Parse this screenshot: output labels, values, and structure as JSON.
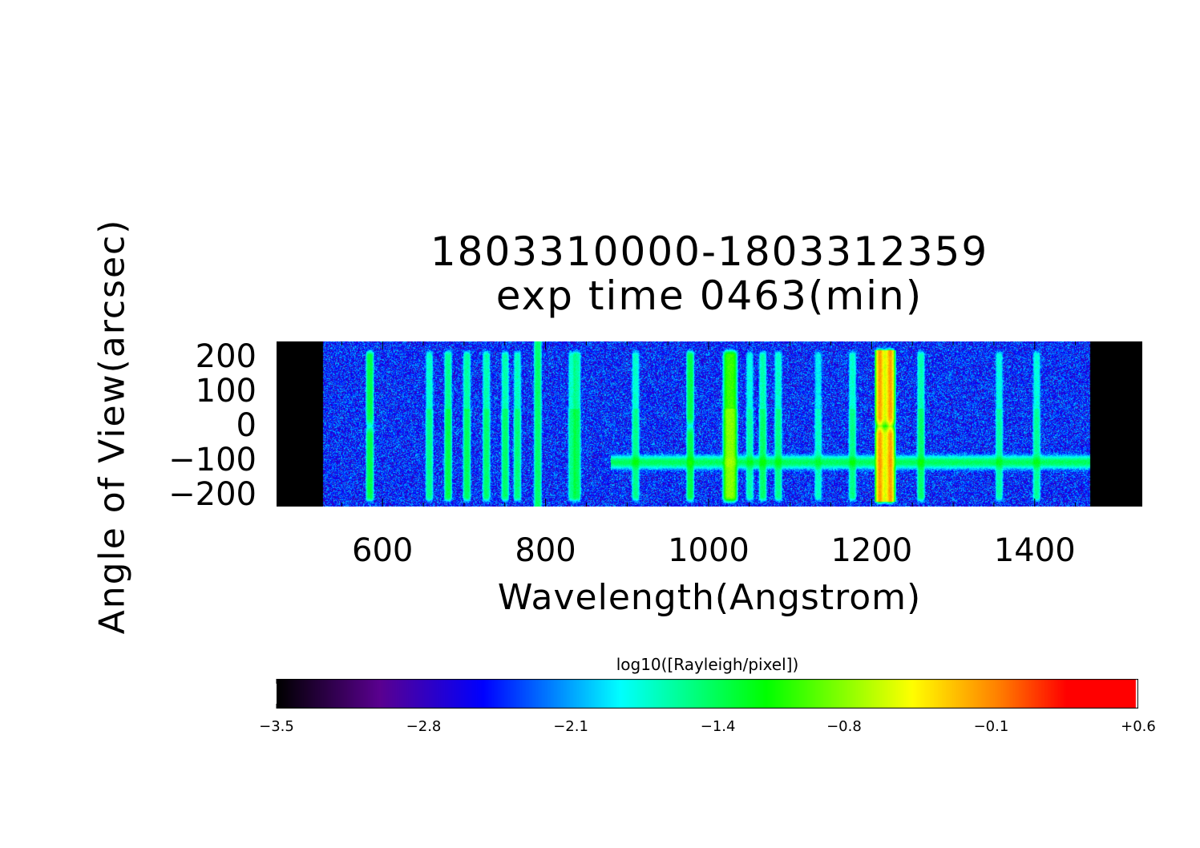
{
  "chart_data": {
    "type": "heatmap",
    "title": [
      "1803310000-1803312359",
      "exp time 0463(min)"
    ],
    "xlabel": "Wavelength(Angstrom)",
    "ylabel": "Angle of View(arcsec)",
    "xlim": [
      470,
      1532
    ],
    "ylim": [
      -235,
      245
    ],
    "xticks": [
      600,
      800,
      1000,
      1200,
      1400
    ],
    "yticks": [
      200,
      100,
      0,
      -100,
      -200
    ],
    "ytick_labels": [
      "200",
      "100",
      "0",
      "−100",
      "−200"
    ],
    "detector_range": [
      527,
      1468
    ],
    "background_log10": -2.45,
    "emission_lines": [
      {
        "wavelength": 584,
        "peak": -1.4,
        "split_at_zero": true
      },
      {
        "wavelength": 657,
        "peak": -1.6
      },
      {
        "wavelength": 680,
        "peak": -1.4
      },
      {
        "wavelength": 703,
        "peak": -1.45
      },
      {
        "wavelength": 727,
        "peak": -1.5
      },
      {
        "wavelength": 750,
        "peak": -1.5
      },
      {
        "wavelength": 765,
        "peak": -1.55
      },
      {
        "wavelength": 790,
        "peak": -1.5,
        "full_height": true
      },
      {
        "wavelength": 832,
        "peak": -1.6
      },
      {
        "wavelength": 838,
        "peak": -1.45
      },
      {
        "wavelength": 910,
        "peak": -1.6
      },
      {
        "wavelength": 977,
        "peak": -1.4,
        "split_at_zero": true
      },
      {
        "wavelength": 1026,
        "peak": -0.8
      },
      {
        "wavelength": 1050,
        "peak": -1.7
      },
      {
        "wavelength": 1066,
        "peak": -1.5
      },
      {
        "wavelength": 1085,
        "peak": -1.6
      },
      {
        "wavelength": 1134,
        "peak": -1.8
      },
      {
        "wavelength": 1176,
        "peak": -1.6
      },
      {
        "wavelength": 1216,
        "peak": 0.1,
        "split_at_zero": true
      },
      {
        "wavelength": 1260,
        "peak": -1.5
      },
      {
        "wavelength": 1356,
        "peak": -1.7
      },
      {
        "wavelength": 1402,
        "peak": -1.65
      }
    ],
    "horizontal_band": {
      "angle": -105,
      "from_wavelength": 880,
      "to_wavelength": 1468,
      "peak": -1.45
    },
    "colorbar": {
      "label": "log10([Rayleigh/pixel])",
      "range": [
        -3.5,
        0.6
      ],
      "tick_labels": [
        "−3.5",
        "−2.8",
        "−2.1",
        "−1.4",
        "−0.8",
        "−0.1",
        "+0.6"
      ],
      "tick_values": [
        -3.5,
        -2.8,
        -2.1,
        -1.4,
        -0.8,
        -0.1,
        0.6
      ],
      "colors": [
        "#000000",
        "#5a0090",
        "#0000ff",
        "#00ffff",
        "#00ff00",
        "#ffff00",
        "#ff8000",
        "#ff0000"
      ]
    }
  }
}
